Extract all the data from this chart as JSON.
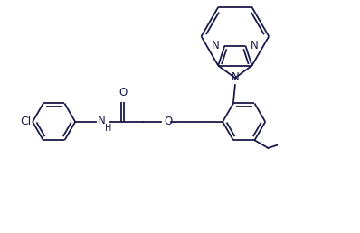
{
  "bg": "#ffffff",
  "lc": "#1a1a4a",
  "lw": 1.3,
  "fs": 8.5,
  "figsize": [
    3.98,
    2.58
  ],
  "dpi": 100,
  "xlim": [
    0,
    10
  ],
  "ylim": [
    0,
    6.5
  ]
}
